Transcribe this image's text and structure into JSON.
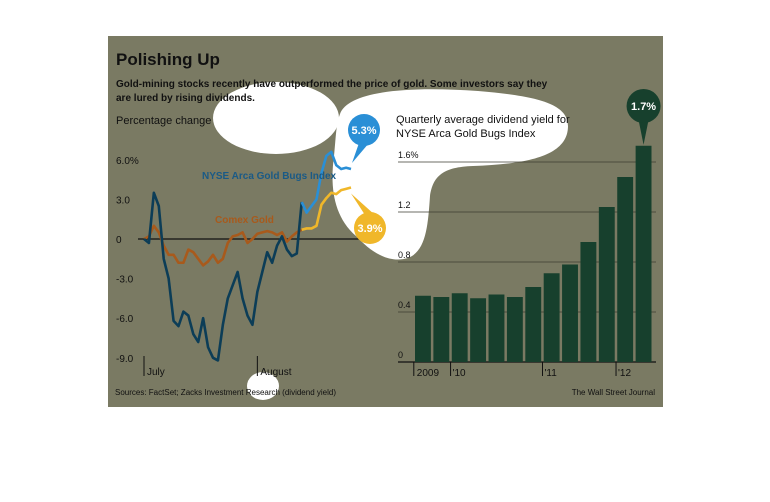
{
  "title": "Polishing Up",
  "subtitle_line1": "Gold-mining stocks recently have outperformed the price of gold. Some investors say they",
  "subtitle_line2": "are lured by rising dividends.",
  "source": "Sources: FactSet; Zacks Investment Research (dividend yield)",
  "credit": "The Wall Street Journal",
  "colors": {
    "background": "#7a7a63",
    "bugs_line": "#0c3d57",
    "bugs_tail": "#2a8fd6",
    "gold_line": "#a85a1c",
    "gold_tail": "#f0b72a",
    "bar": "#17402d",
    "grid": "#3e3e30",
    "highlight": "#ffffff"
  },
  "chart_data": [
    {
      "type": "line",
      "ylabel": "Percentage change",
      "ylim": [
        -10,
        7.5
      ],
      "yticks": [
        6,
        3,
        0,
        -3,
        -6,
        -9
      ],
      "ytick_labels": [
        "6.0%",
        "3.0",
        "0",
        "-3.0",
        "-6.0",
        "-9.0"
      ],
      "x_labels": [
        {
          "label": "July",
          "day": 0
        },
        {
          "label": "August",
          "day": 23
        }
      ],
      "series": [
        {
          "name": "NYSE Arca Gold Bugs Index",
          "x": [
            0,
            1,
            2,
            3,
            4,
            5,
            6,
            7,
            8,
            9,
            10,
            11,
            12,
            13,
            14,
            15,
            16,
            17,
            18,
            19,
            20,
            21,
            22,
            23,
            24,
            25,
            26,
            27,
            28,
            29,
            30,
            31,
            32,
            33,
            34,
            35,
            36,
            37,
            38,
            39,
            40,
            41,
            42
          ],
          "values": [
            0,
            -0.3,
            3.5,
            2.5,
            -1.5,
            -3.0,
            -6.2,
            -6.6,
            -5.5,
            -5.8,
            -7.2,
            -7.8,
            -6.0,
            -8.2,
            -9.0,
            -9.2,
            -6.5,
            -4.5,
            -3.5,
            -2.5,
            -4.5,
            -5.8,
            -6.5,
            -4.0,
            -2.5,
            -1.0,
            -1.8,
            -0.5,
            0.2,
            -0.8,
            -1.3,
            -1.1,
            2.8,
            2.0,
            2.5,
            3.0,
            5.0,
            6.3,
            6.6,
            5.6,
            5.3,
            5.4,
            5.3
          ],
          "end_label": "5.3%"
        },
        {
          "name": "Comex Gold",
          "x": [
            0,
            1,
            2,
            3,
            4,
            5,
            6,
            7,
            8,
            9,
            10,
            11,
            12,
            13,
            14,
            15,
            16,
            17,
            18,
            19,
            20,
            21,
            22,
            23,
            24,
            25,
            26,
            27,
            28,
            29,
            30,
            31,
            32,
            33,
            34,
            35,
            36,
            37,
            38,
            39,
            40,
            41,
            42
          ],
          "values": [
            0,
            0.2,
            1.0,
            0.5,
            -0.5,
            -1.2,
            -1.2,
            -1.8,
            -1.8,
            -0.8,
            -1.0,
            -1.5,
            -2.0,
            -1.7,
            -1.2,
            -1.8,
            -1.5,
            -0.3,
            0.2,
            0.3,
            0.5,
            -0.3,
            0.0,
            0.4,
            0.5,
            0.6,
            0.5,
            0.3,
            0.5,
            -0.2,
            0.2,
            0.5,
            0.7,
            0.8,
            0.8,
            1.0,
            2.6,
            3.1,
            3.5,
            3.4,
            3.7,
            3.8,
            3.9
          ],
          "end_label": "3.9%"
        }
      ]
    },
    {
      "type": "bar",
      "title": "Quarterly average dividend yield for NYSE Arca Gold Bugs Index",
      "ylim": [
        0,
        1.6
      ],
      "yticks": [
        1.6,
        1.2,
        0.8,
        0.4,
        0
      ],
      "ytick_labels": [
        "1.6%",
        "1.2",
        "0.8",
        "0.4",
        "0"
      ],
      "x_labels": [
        {
          "label": "2009",
          "index": 0
        },
        {
          "label": "'10",
          "index": 2
        },
        {
          "label": "'11",
          "index": 7
        },
        {
          "label": "'12",
          "index": 11
        }
      ],
      "values": [
        0.53,
        0.52,
        0.55,
        0.51,
        0.54,
        0.52,
        0.6,
        0.71,
        0.78,
        0.96,
        1.24,
        1.48,
        1.73
      ],
      "end_label": "1.7%"
    }
  ]
}
